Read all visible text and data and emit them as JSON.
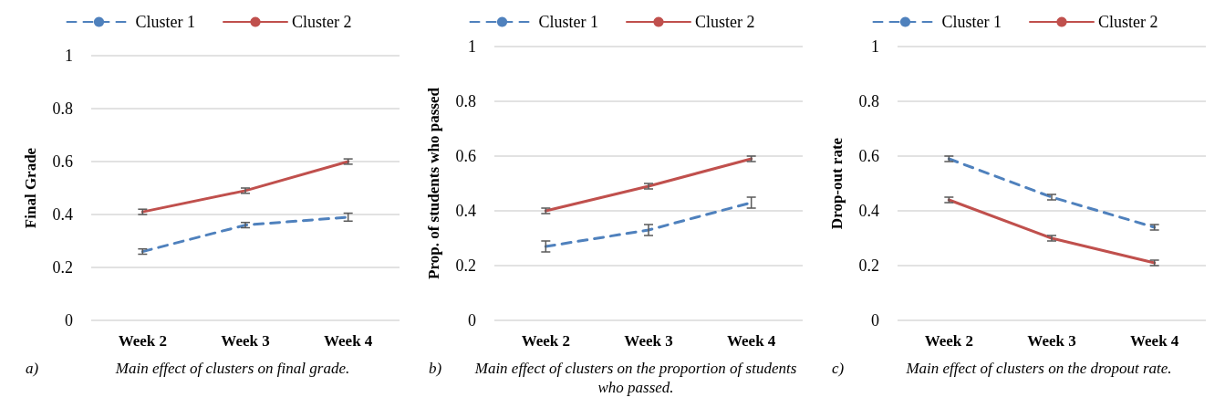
{
  "chart_data": [
    {
      "type": "line",
      "categories": [
        "Week 2",
        "Week 3",
        "Week 4"
      ],
      "ylabel": "Final Grade",
      "ylim": [
        0,
        1
      ],
      "yticks": [
        0,
        0.2,
        0.4,
        0.6,
        0.8,
        1
      ],
      "grid": "y",
      "legend": "top",
      "marker": "none",
      "series": [
        {
          "name": "Cluster 1",
          "color": "#4f81bd",
          "line_style": "dashed",
          "values": [
            0.26,
            0.36,
            0.39
          ],
          "errors": [
            0.01,
            0.01,
            0.015
          ]
        },
        {
          "name": "Cluster 2",
          "color": "#c0504d",
          "line_style": "solid",
          "values": [
            0.41,
            0.49,
            0.6
          ],
          "errors": [
            0.01,
            0.01,
            0.01
          ]
        }
      ],
      "annotations": [
        "a)",
        "Main effect of clusters on final grade."
      ]
    },
    {
      "type": "line",
      "categories": [
        "Week 2",
        "Week 3",
        "Week 4"
      ],
      "ylabel": "Prop. of students who passed",
      "ylim": [
        0,
        1
      ],
      "yticks": [
        0,
        0.2,
        0.4,
        0.6,
        0.8,
        1
      ],
      "grid": "y",
      "legend": "top",
      "marker": "none",
      "series": [
        {
          "name": "Cluster 1",
          "color": "#4f81bd",
          "line_style": "dashed",
          "values": [
            0.27,
            0.33,
            0.43
          ],
          "errors": [
            0.02,
            0.02,
            0.02
          ]
        },
        {
          "name": "Cluster 2",
          "color": "#c0504d",
          "line_style": "solid",
          "values": [
            0.4,
            0.49,
            0.59
          ],
          "errors": [
            0.01,
            0.01,
            0.01
          ]
        }
      ],
      "annotations": [
        "b)",
        "Main effect of clusters on the proportion of students who passed."
      ]
    },
    {
      "type": "line",
      "categories": [
        "Week 2",
        "Week 3",
        "Week 4"
      ],
      "ylabel": "Drop-out rate",
      "ylim": [
        0,
        1
      ],
      "yticks": [
        0,
        0.2,
        0.4,
        0.6,
        0.8,
        1
      ],
      "grid": "y",
      "legend": "top",
      "marker": "none",
      "series": [
        {
          "name": "Cluster 1",
          "color": "#4f81bd",
          "line_style": "dashed",
          "values": [
            0.59,
            0.45,
            0.34
          ],
          "errors": [
            0.01,
            0.01,
            0.01
          ]
        },
        {
          "name": "Cluster 2",
          "color": "#c0504d",
          "line_style": "solid",
          "values": [
            0.44,
            0.3,
            0.21
          ],
          "errors": [
            0.01,
            0.01,
            0.01
          ]
        }
      ],
      "annotations": [
        "c)",
        "Main effect of clusters on the dropout rate."
      ]
    }
  ]
}
